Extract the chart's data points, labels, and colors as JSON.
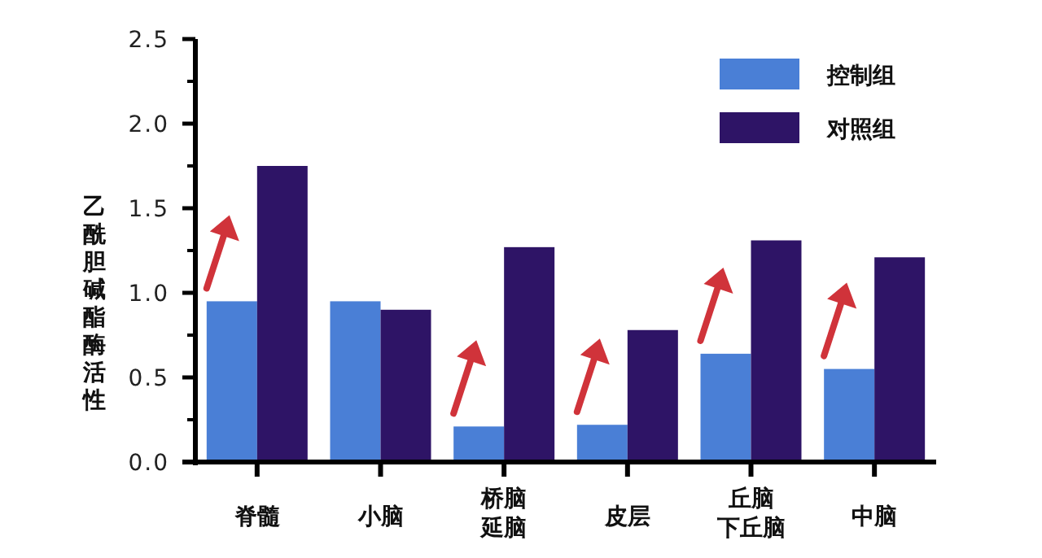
{
  "chart_data": {
    "type": "bar",
    "ylabel": "乙酰胆碱酯酶活性",
    "categories": [
      "脊髓",
      "小脑",
      "桥脑延脑",
      "皮层",
      "丘脑下丘脑",
      "中脑"
    ],
    "series": [
      {
        "name": "控制组",
        "color": "#4a7fd6",
        "values": [
          0.95,
          0.95,
          0.21,
          0.22,
          0.64,
          0.55
        ]
      },
      {
        "name": "对照组",
        "color": "#2e1466",
        "values": [
          1.75,
          0.9,
          1.27,
          0.78,
          1.31,
          1.21
        ]
      }
    ],
    "ylim": [
      0,
      2.5
    ],
    "yticks": [
      {
        "value": 0,
        "label": "0.0"
      },
      {
        "value": 0.5,
        "label": "0.5"
      },
      {
        "value": 1,
        "label": "1.0"
      },
      {
        "value": 1.5,
        "label": "1.5"
      },
      {
        "value": 2,
        "label": "2.0"
      },
      {
        "value": 2.5,
        "label": "2.5"
      }
    ],
    "grid": false,
    "legend": "top right"
  }
}
